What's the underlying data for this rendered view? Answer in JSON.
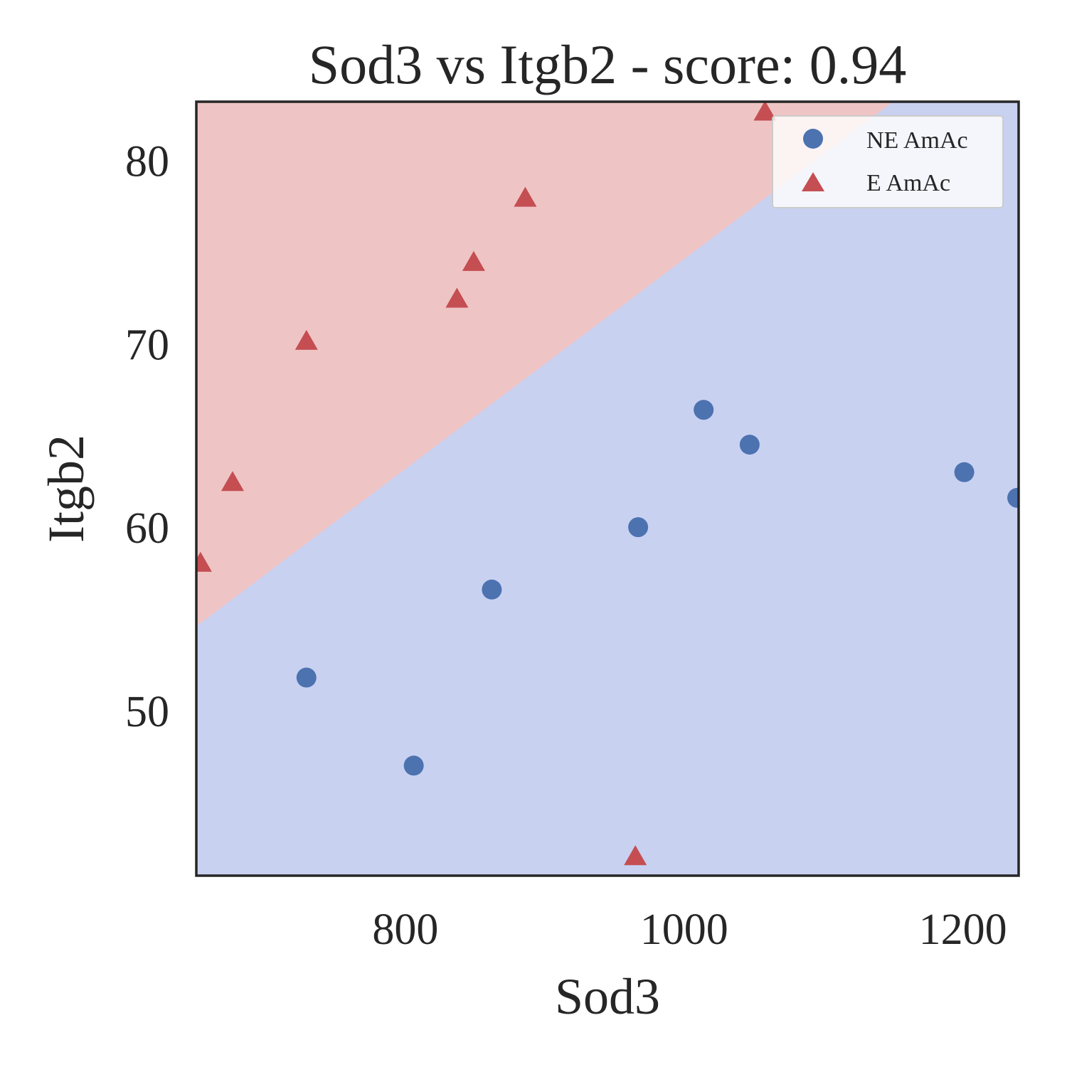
{
  "chart_data": {
    "type": "scatter",
    "title": "Sod3 vs Itgb2 - score: 0.94",
    "xlabel": "Sod3",
    "ylabel": "Itgb2",
    "xlim": [
      650,
      1240
    ],
    "ylim": [
      41,
      83.2
    ],
    "xticks": [
      800,
      1000,
      1200
    ],
    "yticks": [
      50,
      60,
      70,
      80
    ],
    "xtick_labels": [
      "800",
      "1000",
      "1200"
    ],
    "ytick_labels": [
      "50",
      "60",
      "70",
      "80"
    ],
    "grid": false,
    "legend_position": "top-right",
    "decision_boundary": {
      "points": [
        [
          650,
          54.6
        ],
        [
          1150,
          83.2
        ]
      ],
      "above_class": "E AmAc",
      "below_class": "NE AmAc"
    },
    "series": [
      {
        "name": "NE AmAc",
        "marker": "circle",
        "color": "#4c72b0",
        "points": [
          [
            729,
            51.8
          ],
          [
            806,
            47.0
          ],
          [
            862,
            56.6
          ],
          [
            967,
            60.0
          ],
          [
            1014,
            66.4
          ],
          [
            1047,
            64.5
          ],
          [
            1201,
            63.0
          ],
          [
            1239,
            61.6
          ]
        ]
      },
      {
        "name": "E AmAc",
        "marker": "triangle",
        "color": "#c44e52",
        "points": [
          [
            653,
            58.0
          ],
          [
            676,
            62.4
          ],
          [
            729,
            70.1
          ],
          [
            837,
            72.4
          ],
          [
            849,
            74.4
          ],
          [
            886,
            77.9
          ],
          [
            965,
            42.0
          ],
          [
            1058,
            82.6
          ]
        ]
      }
    ],
    "region_colors": {
      "E AmAc": "#efc4c4",
      "NE AmAc": "#c9d1f1"
    }
  }
}
